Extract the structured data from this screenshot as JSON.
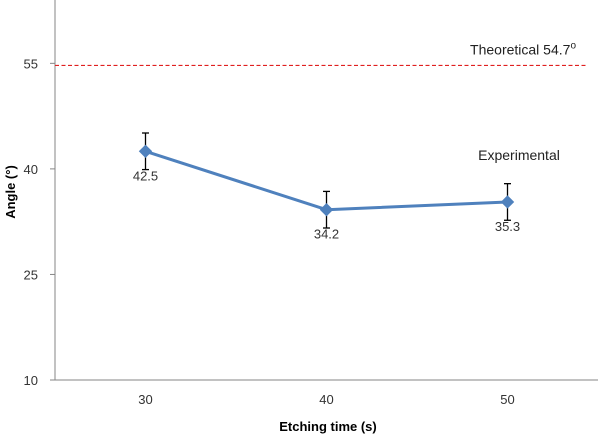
{
  "chart_data": {
    "type": "line",
    "xlabel": "Etching time (s)",
    "ylabel": "Angle (°)",
    "x_tick_labels": [
      "30",
      "40",
      "50"
    ],
    "y_tick_labels": [
      "10",
      "25",
      "40",
      "55"
    ],
    "ylim": [
      10,
      64
    ],
    "xlim": [
      25,
      55
    ],
    "grid": false,
    "series": [
      {
        "name": "Experimental",
        "color": "#4F81BD",
        "x": [
          30,
          40,
          50
        ],
        "values": [
          42.5,
          34.2,
          35.3
        ],
        "error": [
          2.6,
          2.6,
          2.6
        ],
        "labels": [
          "42.5",
          "34.2",
          "35.3"
        ]
      }
    ],
    "reference_line": {
      "label": "Theoretical 54.7",
      "label_superscript": "o",
      "value": 54.7,
      "color": "#E02020"
    }
  }
}
